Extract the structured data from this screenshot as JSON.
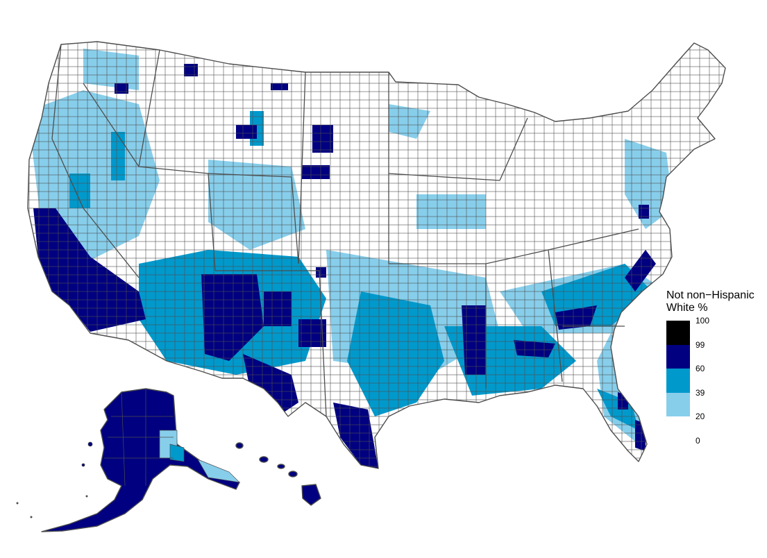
{
  "legend": {
    "title": "Not non−Hispanic\nWhite %",
    "bins": [
      {
        "from": 99,
        "to": 100,
        "color": "#000000"
      },
      {
        "from": 60,
        "to": 99,
        "color": "#000080"
      },
      {
        "from": 39,
        "to": 60,
        "color": "#0099cc"
      },
      {
        "from": 20,
        "to": 39,
        "color": "#87ceeb"
      },
      {
        "from": 0,
        "to": 20,
        "color": "#ffffff"
      }
    ],
    "ticks": [
      "100",
      "99",
      "60",
      "39",
      "20",
      "0"
    ]
  },
  "colors": {
    "outline": "#4d4d4d",
    "bin_100": "#000000",
    "bin_99": "#000080",
    "bin_60": "#0099cc",
    "bin_39": "#87ceeb",
    "bin_20": "#ffffff"
  }
}
